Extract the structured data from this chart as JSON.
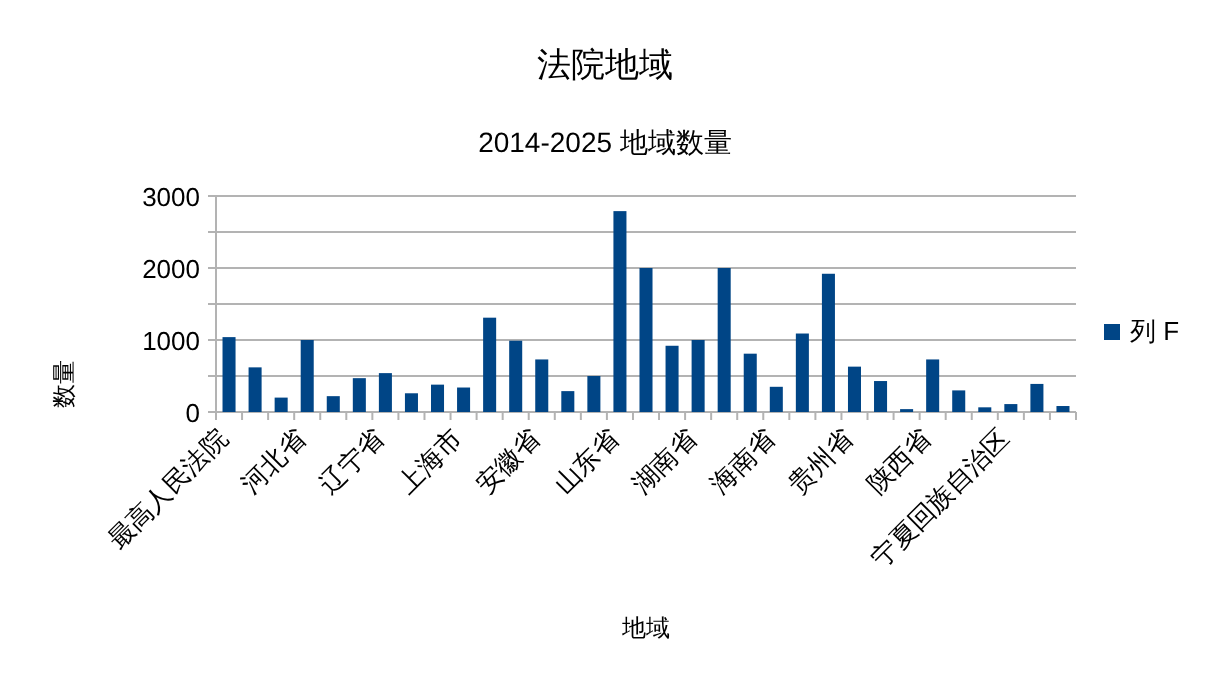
{
  "chart_data": {
    "type": "bar",
    "title": "法院地域",
    "subtitle": "2014-2025 地域数量",
    "xlabel": "地域",
    "ylabel": "数量",
    "categories": [
      "最高人民法院",
      null,
      null,
      "河北省",
      null,
      null,
      "辽宁省",
      null,
      null,
      "上海市",
      null,
      null,
      "安徽省",
      null,
      null,
      "山东省",
      null,
      null,
      "湖南省",
      null,
      null,
      "海南省",
      null,
      null,
      "贵州省",
      null,
      null,
      "陕西省",
      null,
      null,
      "宁夏回族自治区",
      null,
      null
    ],
    "series": [
      {
        "name": "列 F",
        "color": "#004586",
        "values": [
          1040,
          620,
          200,
          1000,
          220,
          470,
          540,
          260,
          380,
          340,
          1310,
          990,
          730,
          290,
          500,
          2790,
          2000,
          920,
          1000,
          2000,
          810,
          350,
          1090,
          1920,
          630,
          430,
          40,
          730,
          300,
          65,
          110,
          390,
          83
        ]
      }
    ],
    "ylim": [
      0,
      3000
    ],
    "yticks": [
      0,
      {
        "value": 500,
        "label": null
      },
      1000,
      {
        "value": 1500,
        "label": null
      },
      2000,
      {
        "value": 2500,
        "label": null
      },
      3000
    ],
    "grid": "y",
    "legend": "right"
  }
}
